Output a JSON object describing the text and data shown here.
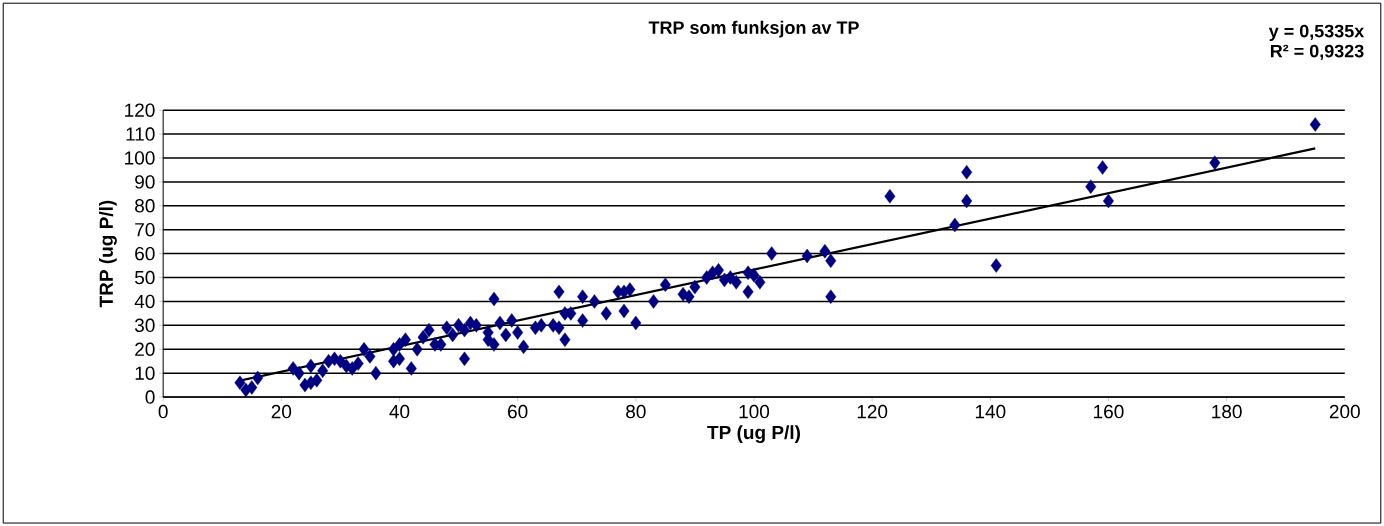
{
  "chart_data": {
    "type": "scatter",
    "title": "TRP som funksjon av TP",
    "xlabel": "TP (ug P/l)",
    "ylabel": "TRP (ug P/l)",
    "annotations": [
      "y = 0,5335x",
      "R² = 0,9323"
    ],
    "xlim": [
      0,
      200
    ],
    "xticks": [
      0,
      20,
      40,
      60,
      80,
      100,
      120,
      140,
      160,
      180,
      200
    ],
    "ylim": [
      0,
      120
    ],
    "yticks": [
      0,
      10,
      20,
      30,
      40,
      50,
      60,
      70,
      80,
      90,
      100,
      110,
      120
    ],
    "grid": "y",
    "series": [
      {
        "color": "#000080",
        "marker": "diamond",
        "x": [
          13,
          15,
          14,
          16,
          22,
          23,
          24,
          25,
          25,
          26,
          27,
          28,
          29,
          30,
          31,
          32,
          33,
          34,
          35,
          36,
          39,
          39,
          40,
          40,
          41,
          42,
          43,
          44,
          45,
          46,
          47,
          48,
          49,
          50,
          51,
          51,
          52,
          53,
          55,
          55,
          56,
          56,
          57,
          58,
          59,
          60,
          61,
          63,
          64,
          66,
          67,
          67,
          68,
          68,
          69,
          71,
          71,
          73,
          75,
          77,
          78,
          78,
          79,
          80,
          83,
          85,
          88,
          89,
          90,
          92,
          93,
          94,
          95,
          96,
          97,
          99,
          99,
          100,
          101,
          103,
          109,
          112,
          113,
          113,
          123,
          134,
          136,
          136,
          141,
          157,
          159,
          160,
          178,
          195
        ],
        "values": [
          6,
          4,
          3,
          8,
          12,
          10,
          5,
          6,
          13,
          7,
          11,
          15,
          16,
          15,
          13,
          12,
          14,
          20,
          17,
          10,
          15,
          20,
          16,
          22,
          24,
          12,
          20,
          25,
          28,
          22,
          22,
          29,
          26,
          30,
          16,
          28,
          31,
          30,
          24,
          27,
          41,
          22,
          31,
          26,
          32,
          27,
          21,
          29,
          30,
          30,
          44,
          29,
          24,
          35,
          35,
          42,
          32,
          40,
          35,
          44,
          36,
          44,
          45,
          31,
          40,
          47,
          43,
          42,
          46,
          50,
          52,
          53,
          49,
          50,
          48,
          52,
          44,
          51,
          48,
          60,
          59,
          61,
          57,
          42,
          84,
          72,
          94,
          82,
          55,
          88,
          96,
          82,
          98,
          114
        ]
      },
      {
        "type": "line",
        "color": "#000000",
        "marker": "none",
        "line_style": "solid",
        "x": [
          13,
          195
        ],
        "values": [
          6.9,
          104.0
        ]
      }
    ]
  }
}
